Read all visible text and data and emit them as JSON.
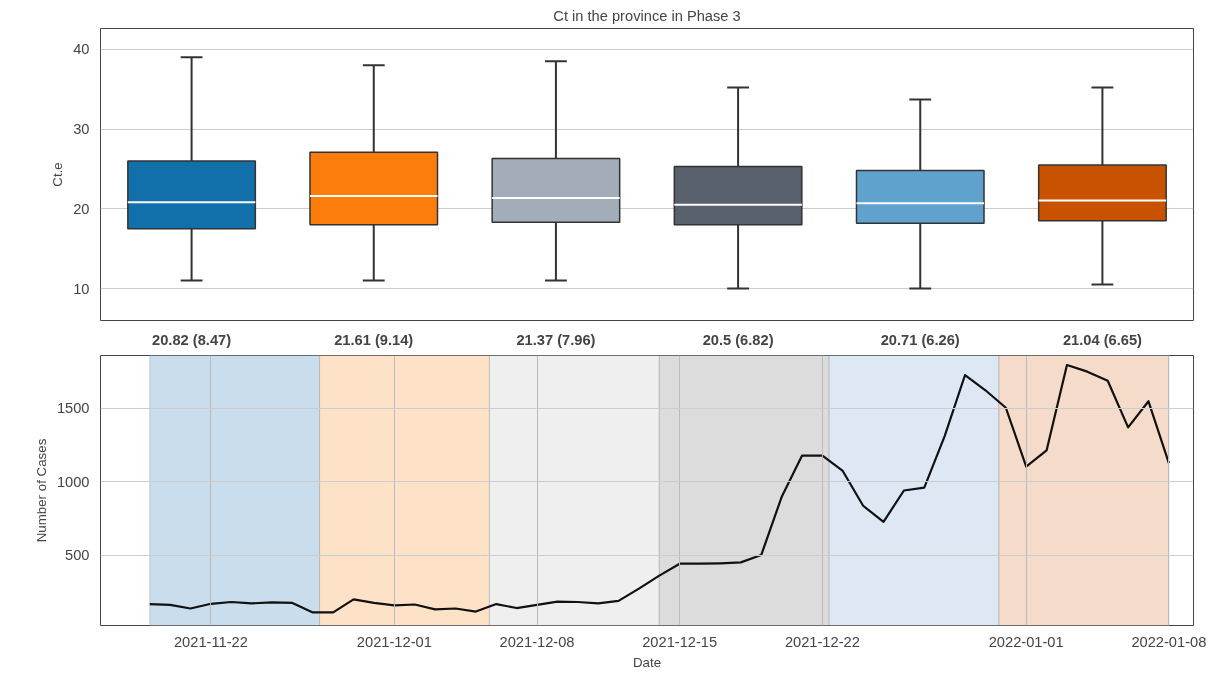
{
  "chart_data": [
    {
      "type": "box",
      "title": "Ct in the province in Phase 3",
      "ylabel": "Ct.e",
      "categories": [
        "20.82 (8.47)",
        "21.61 (9.14)",
        "21.37 (7.96)",
        "20.5 (6.82)",
        "20.71 (6.26)",
        "21.04 (6.65)"
      ],
      "colors": [
        "#1170aa",
        "#fc7d0b",
        "#a3acb9",
        "#57606c",
        "#5fa2ce",
        "#c85200"
      ],
      "boxes": [
        {
          "low": 11,
          "q1": 17.5,
          "median": 20.82,
          "q3": 26,
          "high": 39
        },
        {
          "low": 11,
          "q1": 18,
          "median": 21.61,
          "q3": 27.1,
          "high": 38
        },
        {
          "low": 11,
          "q1": 18.3,
          "median": 21.37,
          "q3": 26.3,
          "high": 38.5
        },
        {
          "low": 10,
          "q1": 18,
          "median": 20.5,
          "q3": 25.3,
          "high": 35.2
        },
        {
          "low": 10,
          "q1": 18.2,
          "median": 20.71,
          "q3": 24.8,
          "high": 33.7
        },
        {
          "low": 10.5,
          "q1": 18.5,
          "median": 21.04,
          "q3": 25.5,
          "high": 35.2
        }
      ],
      "ylim": [
        6,
        42.6
      ],
      "yticks": [
        10,
        20,
        30,
        40
      ],
      "grid": "y"
    },
    {
      "type": "line",
      "xlabel": "Date",
      "ylabel": "Number of Cases",
      "x": [
        "2021-11-19",
        "2021-11-20",
        "2021-11-21",
        "2021-11-22",
        "2021-11-23",
        "2021-11-24",
        "2021-11-25",
        "2021-11-26",
        "2021-11-27",
        "2021-11-28",
        "2021-11-29",
        "2021-11-30",
        "2021-12-01",
        "2021-12-02",
        "2021-12-03",
        "2021-12-04",
        "2021-12-05",
        "2021-12-06",
        "2021-12-07",
        "2021-12-08",
        "2021-12-09",
        "2021-12-10",
        "2021-12-11",
        "2021-12-12",
        "2021-12-13",
        "2021-12-14",
        "2021-12-15",
        "2021-12-16",
        "2021-12-17",
        "2021-12-18",
        "2021-12-19",
        "2021-12-20",
        "2021-12-21",
        "2021-12-22",
        "2021-12-23",
        "2021-12-24",
        "2021-12-25",
        "2021-12-26",
        "2021-12-27",
        "2021-12-28",
        "2021-12-29",
        "2021-12-30",
        "2021-12-31",
        "2022-01-01",
        "2022-01-02",
        "2022-01-03",
        "2022-01-04",
        "2022-01-05",
        "2022-01-06",
        "2022-01-07",
        "2022-01-08"
      ],
      "series": [
        {
          "color": "#111111",
          "values": [
            166,
            160,
            136,
            168,
            180,
            171,
            177,
            174,
            109,
            109,
            198,
            174,
            157,
            163,
            130,
            136,
            115,
            166,
            139,
            160,
            183,
            180,
            171,
            188,
            271,
            360,
            441,
            441,
            444,
            450,
            500,
            895,
            1177,
            1177,
            1073,
            836,
            726,
            940,
            960,
            1311,
            1727,
            1623,
            1504,
            1103,
            1213,
            1795,
            1750,
            1688,
            1370,
            1548,
            1127
          ]
        }
      ],
      "bands": [
        {
          "axis": "x",
          "from": "2021-11-19T00:00",
          "to": "2021-11-27T08:00",
          "color": "#c9dded"
        },
        {
          "axis": "x",
          "from": "2021-11-27T08:00",
          "to": "2021-12-05T16:00",
          "color": "#fde2c8"
        },
        {
          "axis": "x",
          "from": "2021-12-05T16:00",
          "to": "2021-12-14T00:00",
          "color": "#efefef"
        },
        {
          "axis": "x",
          "from": "2021-12-14T00:00",
          "to": "2021-12-22T08:00",
          "color": "#dcdcdc"
        },
        {
          "axis": "x",
          "from": "2021-12-22T08:00",
          "to": "2021-12-30T16:00",
          "color": "#dde8f4"
        },
        {
          "axis": "x",
          "from": "2021-12-30T16:00",
          "to": "2022-01-08T00:00",
          "color": "#f5dcca"
        }
      ],
      "xlim": [
        "2021-11-16T14:00",
        "2022-01-09T05:00"
      ],
      "xticks": [
        "2021-11-22",
        "2021-12-01",
        "2021-12-08",
        "2021-12-15",
        "2021-12-22",
        "2022-01-01",
        "2022-01-08"
      ],
      "ylim": [
        20,
        1860
      ],
      "yticks": [
        500,
        1000,
        1500
      ],
      "grid": true,
      "line_style": "solid",
      "marker": "none"
    }
  ]
}
